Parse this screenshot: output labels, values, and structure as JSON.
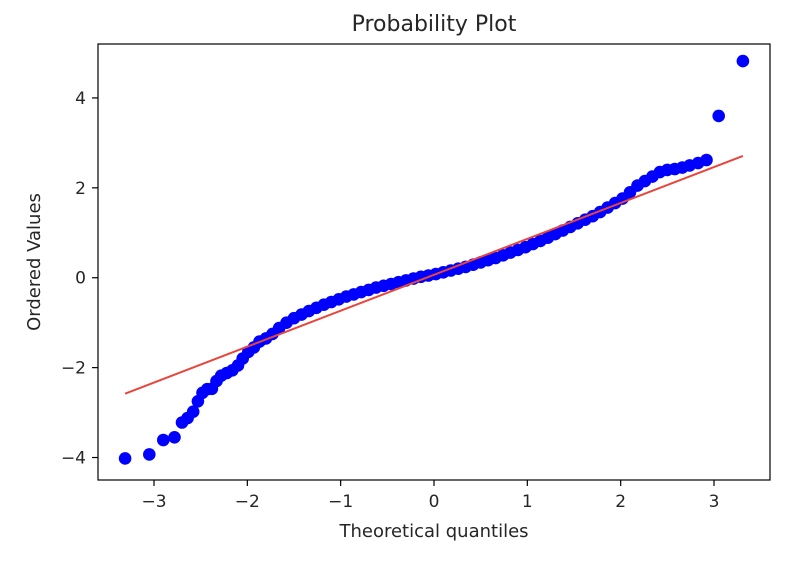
{
  "chart_data": {
    "type": "scatter",
    "title": "Probability Plot",
    "xlabel": "Theoretical quantiles",
    "ylabel": "Ordered Values",
    "xlim": [
      -3.6,
      3.6
    ],
    "ylim": [
      -4.5,
      5.2
    ],
    "grid": false,
    "marker_color": "#0000ff",
    "fit_line_color": "#e8453c",
    "x_ticks": [
      -3,
      -2,
      -1,
      0,
      1,
      2,
      3
    ],
    "x_tick_labels": [
      "−3",
      "−2",
      "−1",
      "0",
      "1",
      "2",
      "3"
    ],
    "y_ticks": [
      -4,
      -2,
      0,
      2,
      4
    ],
    "y_tick_labels": [
      "−4",
      "−2",
      "0",
      "2",
      "4"
    ],
    "fit_line": {
      "x": [
        -3.31,
        3.31
      ],
      "y": [
        -2.58,
        2.71
      ]
    },
    "points": {
      "x": [
        -3.31,
        -3.05,
        -2.9,
        -2.78,
        -2.7,
        -2.64,
        -2.58,
        -2.53,
        -2.48,
        -2.43,
        -2.38,
        -2.33,
        -2.28,
        -2.22,
        -2.16,
        -2.1,
        -2.05,
        -1.99,
        -1.93,
        -1.87,
        -1.8,
        -1.73,
        -1.66,
        -1.58,
        -1.5,
        -1.42,
        -1.34,
        -1.26,
        -1.18,
        -1.1,
        -1.02,
        -0.94,
        -0.86,
        -0.78,
        -0.7,
        -0.62,
        -0.54,
        -0.46,
        -0.38,
        -0.3,
        -0.22,
        -0.14,
        -0.06,
        0.02,
        0.1,
        0.18,
        0.26,
        0.34,
        0.42,
        0.5,
        0.58,
        0.66,
        0.74,
        0.82,
        0.9,
        0.98,
        1.06,
        1.14,
        1.22,
        1.3,
        1.38,
        1.46,
        1.54,
        1.62,
        1.7,
        1.78,
        1.86,
        1.94,
        2.02,
        2.1,
        2.18,
        2.26,
        2.34,
        2.42,
        2.5,
        2.58,
        2.66,
        2.74,
        2.83,
        2.92,
        3.05,
        3.31
      ],
      "y": [
        -4.02,
        -3.93,
        -3.61,
        -3.55,
        -3.22,
        -3.12,
        -2.98,
        -2.75,
        -2.56,
        -2.48,
        -2.47,
        -2.3,
        -2.18,
        -2.12,
        -2.06,
        -1.95,
        -1.8,
        -1.65,
        -1.55,
        -1.42,
        -1.35,
        -1.25,
        -1.12,
        -1.0,
        -0.9,
        -0.82,
        -0.74,
        -0.67,
        -0.6,
        -0.54,
        -0.48,
        -0.42,
        -0.37,
        -0.32,
        -0.27,
        -0.22,
        -0.18,
        -0.14,
        -0.1,
        -0.06,
        -0.02,
        0.02,
        0.05,
        0.08,
        0.12,
        0.16,
        0.2,
        0.24,
        0.29,
        0.34,
        0.39,
        0.44,
        0.5,
        0.56,
        0.62,
        0.68,
        0.75,
        0.82,
        0.89,
        0.97,
        1.05,
        1.13,
        1.21,
        1.29,
        1.37,
        1.46,
        1.56,
        1.66,
        1.76,
        1.9,
        2.05,
        2.15,
        2.25,
        2.35,
        2.4,
        2.42,
        2.45,
        2.5,
        2.55,
        2.62,
        3.6,
        4.82
      ]
    }
  }
}
